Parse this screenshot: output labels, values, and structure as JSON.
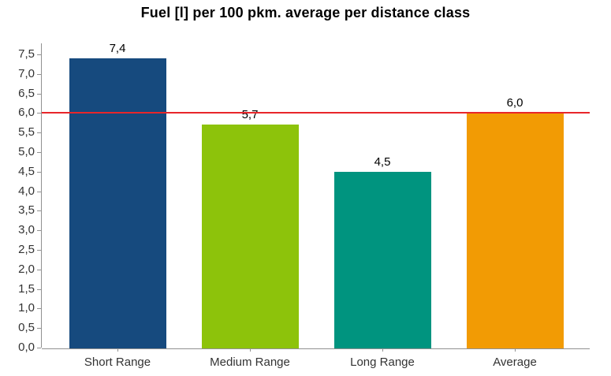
{
  "chart_data": {
    "type": "bar",
    "title": "Fuel [l] per 100 pkm. average per distance class",
    "categories": [
      "Short Range",
      "Medium Range",
      "Long Range",
      "Average"
    ],
    "values": [
      7.4,
      5.7,
      4.5,
      6.0
    ],
    "value_labels": [
      "7,4",
      "5,7",
      "4,5",
      "6,0"
    ],
    "bar_colors": [
      "#164a7e",
      "#8dc30b",
      "#00947f",
      "#f29b04"
    ],
    "xlabel": "",
    "ylabel": "",
    "ylim": [
      0,
      7.5
    ],
    "ytick_step": 0.5,
    "ytick_labels": [
      "0,0",
      "0,5",
      "1,0",
      "1,5",
      "2,0",
      "2,5",
      "3,0",
      "3,5",
      "4,0",
      "4,5",
      "5,0",
      "5,5",
      "6,0",
      "6,5",
      "7,0",
      "7,5"
    ],
    "decimal_separator": ",",
    "grid": false,
    "legend": "none",
    "reference_line": {
      "value": 6.0,
      "color": "#e8262a"
    },
    "axis_color": "#919191",
    "tick_label_color": "#333333",
    "value_label_color": "#000000",
    "title_color": "#000000"
  }
}
